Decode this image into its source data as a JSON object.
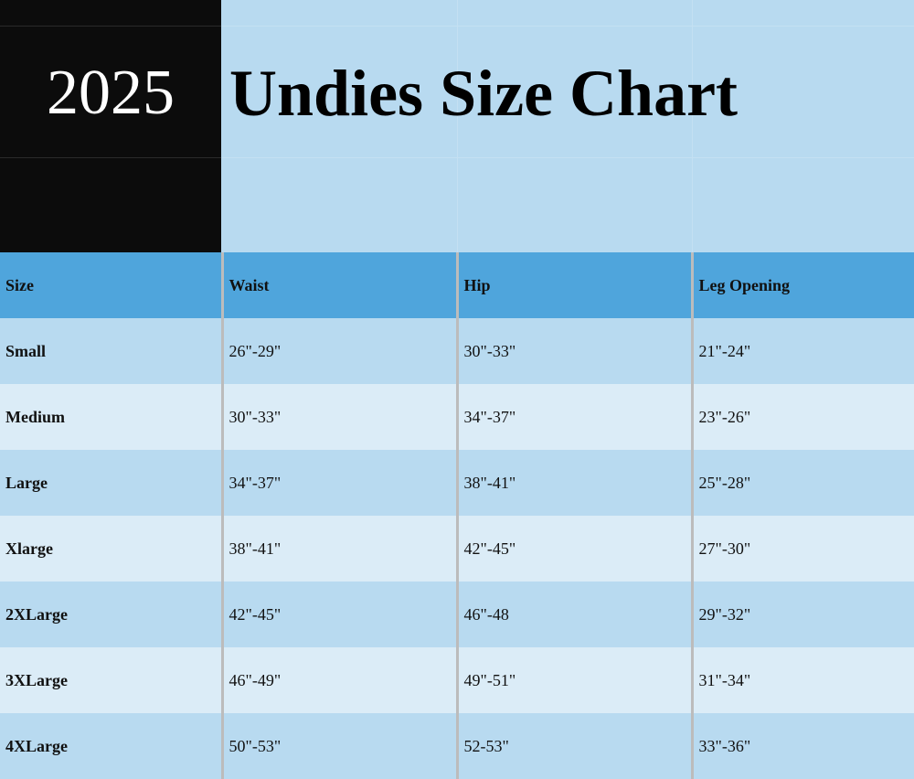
{
  "header": {
    "year": "2025",
    "title": "Undies Size Chart"
  },
  "table": {
    "columns": [
      "Size",
      "Waist",
      "Hip",
      "Leg Opening"
    ],
    "rows": [
      [
        "Small",
        "26\"-29\"",
        "30\"-33\"",
        "21\"-24\""
      ],
      [
        "Medium",
        "30\"-33\"",
        "34\"-37\"",
        "23\"-26\""
      ],
      [
        "Large",
        "34\"-37\"",
        "38\"-41\"",
        "25\"-28\""
      ],
      [
        "Xlarge",
        "38\"-41\"",
        "42\"-45\"",
        "27\"-30\""
      ],
      [
        "2XLarge",
        "42\"-45\"",
        "46\"-48",
        "29\"-32\""
      ],
      [
        "3XLarge",
        "46\"-49\"",
        "49\"-51\"",
        "31\"-34\""
      ],
      [
        "4XLarge",
        "50\"-53\"",
        "52-53\"",
        "33\"-36\""
      ]
    ]
  },
  "colors": {
    "header": "#4fa5dc",
    "row_dark": "#b8daf0",
    "row_light": "#dbecf7",
    "year_bg": "#0c0c0c"
  }
}
